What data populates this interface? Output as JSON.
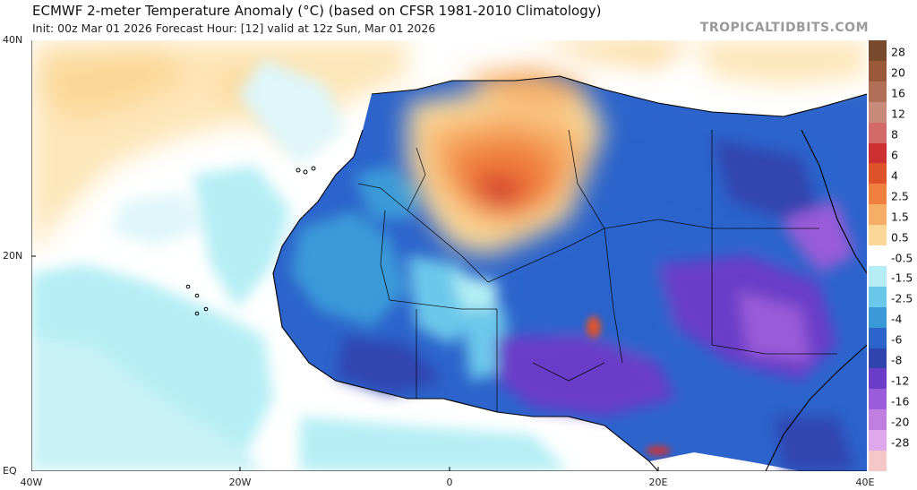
{
  "header": {
    "title": "ECMWF 2-meter Temperature Anomaly (°C) (based on CFSR 1981-2010 Climatology)",
    "subtitle": "Init: 00z Mar 01 2026   Forecast Hour: [12]   valid at 12z Sun, Mar 01 2026",
    "credit": "TROPICALTIDBITS.COM"
  },
  "axes": {
    "y_labels": [
      "40N",
      "20N",
      "EQ"
    ],
    "x_labels": [
      "40W",
      "20W",
      "0",
      "20E",
      "40E"
    ]
  },
  "colorbar": {
    "labels": [
      "28",
      "20",
      "16",
      "12",
      "8",
      "6",
      "4",
      "2.5",
      "1.5",
      "0.5",
      "-0.5",
      "-1.5",
      "-2.5",
      "-4",
      "-6",
      "-8",
      "-12",
      "-16",
      "-20",
      "-28"
    ],
    "colors": [
      "#7a4a2c",
      "#9a5a3a",
      "#b07058",
      "#c88a7a",
      "#d26a6a",
      "#cc3030",
      "#e0522a",
      "#f08040",
      "#f6ae66",
      "#fbd898",
      "#ffffff",
      "#b4eef4",
      "#6cc8ea",
      "#3a9ad8",
      "#2c64cc",
      "#3044b0",
      "#6a3cc8",
      "#9a5cd8",
      "#c07ee0",
      "#e0a8ec",
      "#f4c8c8"
    ]
  },
  "colors": {
    "ocean_neutral": "#ffffff",
    "coastline": "#000000"
  },
  "map": {
    "lon_range": [
      -40,
      40
    ],
    "lat_range": [
      0,
      40
    ]
  }
}
